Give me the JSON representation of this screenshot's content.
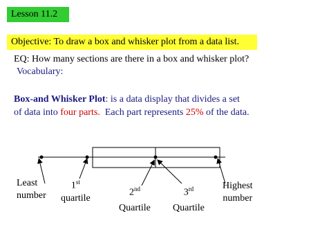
{
  "header": {
    "lesson": "Lesson 11.2",
    "objective": "Objective: To draw a box and whisker plot from a data list."
  },
  "eq": "EQ: How many sections are there in a box and whisker plot?",
  "vocabulary": "Vocabulary:",
  "definition": {
    "term": "Box-and Whisker Plot",
    "line1": ": is a data display that divides a set",
    "line2": [
      "of data into ",
      "four parts.",
      "  Each part represents ",
      "25%",
      " of the data."
    ]
  },
  "labels": {
    "least": [
      "Least",
      "number"
    ],
    "q1": {
      "number": "1",
      "suffix": "st",
      "word": "quartile"
    },
    "q2": {
      "number": "2",
      "suffix": "nd",
      "word": "Quartile"
    },
    "q3": {
      "number": "3",
      "suffix": "rd",
      "word": "Quartile"
    },
    "highest": [
      "Highest",
      "number"
    ]
  }
}
